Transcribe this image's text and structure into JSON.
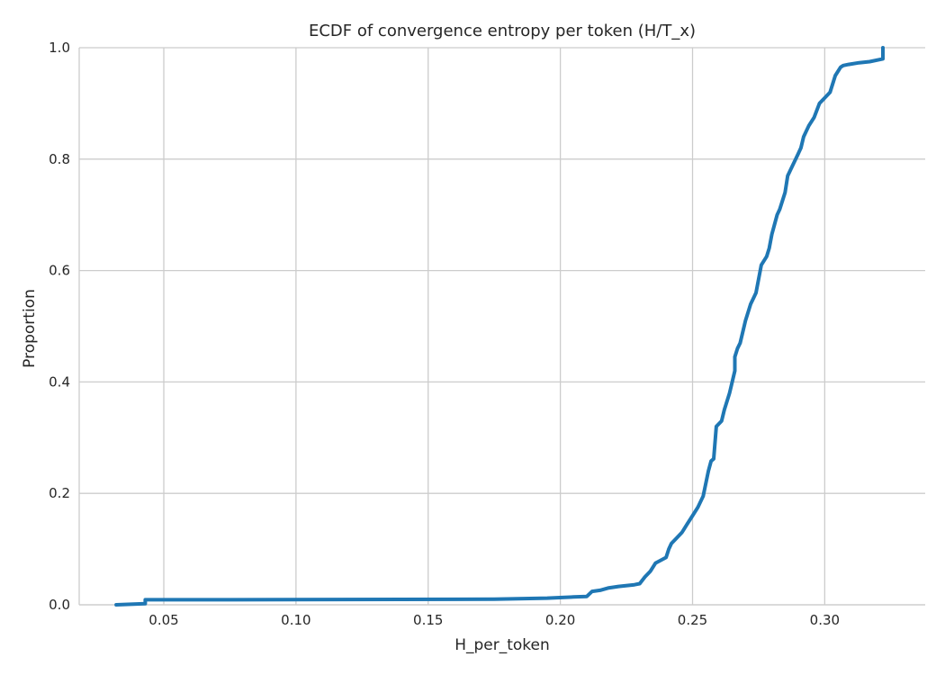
{
  "chart_data": {
    "type": "line",
    "subtype": "ecdf",
    "title": "ECDF of convergence entropy per token (H/T_x)",
    "xlabel": "H_per_token",
    "ylabel": "Proportion",
    "xlim": [
      0.018,
      0.338
    ],
    "ylim": [
      0.0,
      1.0
    ],
    "xticks": [
      0.05,
      0.1,
      0.15,
      0.2,
      0.25,
      0.3
    ],
    "xtick_labels": [
      "0.05",
      "0.10",
      "0.15",
      "0.20",
      "0.25",
      "0.30"
    ],
    "yticks": [
      0.0,
      0.2,
      0.4,
      0.6,
      0.8,
      1.0
    ],
    "ytick_labels": [
      "0.0",
      "0.2",
      "0.4",
      "0.6",
      "0.8",
      "1.0"
    ],
    "grid": true,
    "color": "#1f77b4",
    "series": [
      {
        "x": [
          0.032,
          0.043,
          0.043,
          0.075,
          0.175,
          0.195,
          0.205,
          0.21,
          0.212,
          0.215,
          0.218,
          0.222,
          0.228,
          0.23,
          0.232,
          0.234,
          0.236,
          0.238,
          0.24,
          0.241,
          0.242,
          0.244,
          0.246,
          0.248,
          0.25,
          0.252,
          0.254,
          0.256,
          0.257,
          0.258,
          0.259,
          0.261,
          0.262,
          0.264,
          0.266,
          0.266,
          0.267,
          0.268,
          0.27,
          0.272,
          0.273,
          0.274,
          0.276,
          0.278,
          0.279,
          0.28,
          0.282,
          0.283,
          0.285,
          0.286,
          0.288,
          0.289,
          0.29,
          0.291,
          0.292,
          0.294,
          0.296,
          0.298,
          0.3,
          0.302,
          0.304,
          0.306,
          0.307,
          0.309,
          0.313,
          0.317,
          0.322,
          0.322
        ],
        "y": [
          0.0,
          0.002,
          0.009,
          0.009,
          0.01,
          0.012,
          0.014,
          0.015,
          0.024,
          0.026,
          0.03,
          0.033,
          0.036,
          0.038,
          0.05,
          0.06,
          0.075,
          0.08,
          0.085,
          0.1,
          0.11,
          0.12,
          0.13,
          0.145,
          0.16,
          0.175,
          0.195,
          0.24,
          0.258,
          0.262,
          0.32,
          0.33,
          0.35,
          0.38,
          0.42,
          0.445,
          0.46,
          0.47,
          0.51,
          0.54,
          0.55,
          0.56,
          0.61,
          0.625,
          0.64,
          0.665,
          0.7,
          0.71,
          0.74,
          0.77,
          0.79,
          0.8,
          0.81,
          0.82,
          0.84,
          0.86,
          0.875,
          0.9,
          0.91,
          0.92,
          0.95,
          0.965,
          0.968,
          0.97,
          0.973,
          0.975,
          0.98,
          1.0
        ]
      }
    ]
  }
}
